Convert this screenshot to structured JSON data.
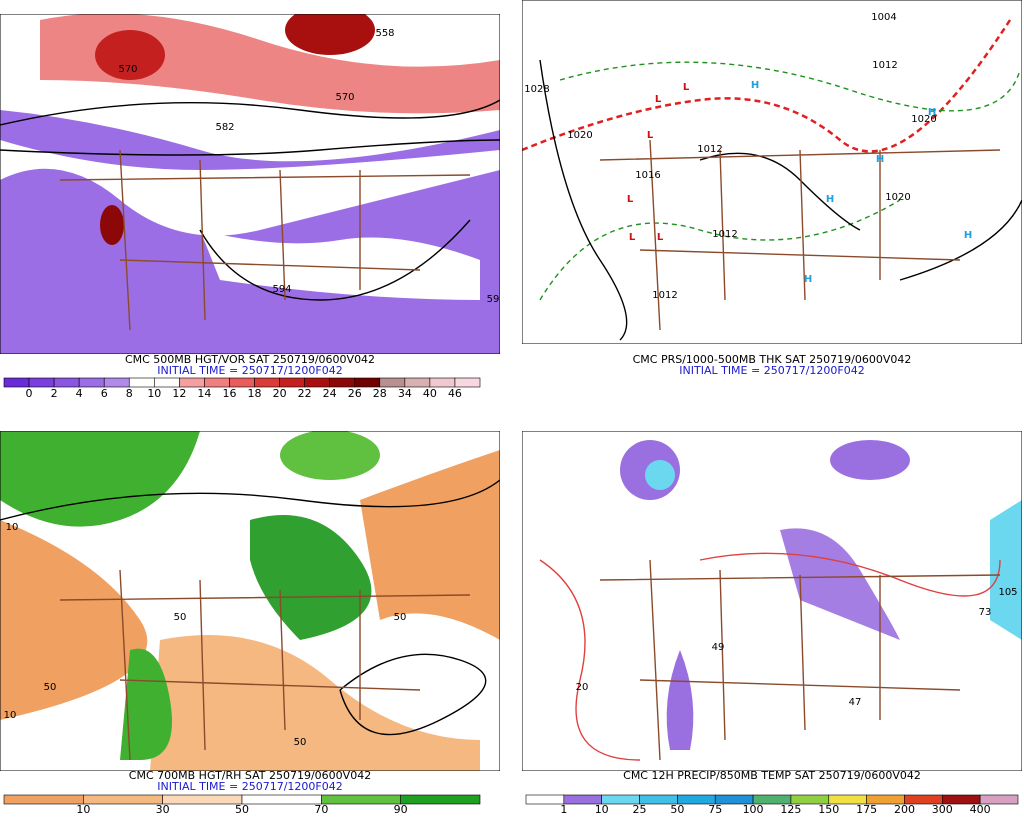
{
  "panels": [
    {
      "title": "CMC 500MB HGT/VOR SAT 250719/0600V042",
      "initial_time": "INITIAL TIME = 250717/1200F042",
      "colorbar": {
        "labels": [
          "0",
          "2",
          "4",
          "6",
          "8",
          "10",
          "12",
          "14",
          "16",
          "18",
          "20",
          "22",
          "24",
          "26",
          "28",
          "34",
          "40",
          "46"
        ],
        "colors": [
          "#6a2bd9",
          "#7a3fdc",
          "#8a55e0",
          "#9c6ee5",
          "#b08ae9",
          "#ffffff",
          "#ffffff",
          "#f5a0a0",
          "#f08080",
          "#e85c5c",
          "#d93a3a",
          "#c42020",
          "#a81010",
          "#8c0808",
          "#700000",
          "#b89090",
          "#d8b0b0",
          "#f0c8d0",
          "#f8d8e0"
        ]
      },
      "map_labels": [
        "570",
        "582",
        "594",
        "558",
        "570",
        "59"
      ]
    },
    {
      "title": "CMC PRS/1000-500MB THK SAT 250719/0600V042",
      "initial_time": "INITIAL TIME = 250717/1200F042",
      "map_labels": [
        "1028",
        "1020",
        "1012",
        "1012",
        "1016",
        "1012",
        "1004",
        "1020",
        "1020",
        "1012",
        "H",
        "H",
        "H",
        "H",
        "H",
        "H",
        "L",
        "L",
        "L",
        "L",
        "L",
        "L"
      ]
    },
    {
      "title": "CMC 700MB HGT/RH SAT 250719/0600V042",
      "initial_time": "INITIAL TIME = 250717/1200F042",
      "colorbar": {
        "labels": [
          "10",
          "30",
          "50",
          "70",
          "90"
        ],
        "colors": [
          "#f0a060",
          "#f5b880",
          "#fad8b8",
          "#ffffff",
          "#60c040",
          "#20a020"
        ]
      },
      "map_labels": [
        "10",
        "50",
        "50",
        "50",
        "10",
        "50"
      ]
    },
    {
      "title": "CMC 12H PRECIP/850MB TEMP SAT 250719/0600V042",
      "colorbar": {
        "labels": [
          "1",
          "10",
          "25",
          "50",
          "75",
          "100",
          "125",
          "150",
          "175",
          "200",
          "300",
          "400"
        ],
        "colors": [
          "#ffffff",
          "#9a70e0",
          "#6cd8f0",
          "#40c0e8",
          "#20a8e0",
          "#2090d8",
          "#50b070",
          "#90d040",
          "#f0e040",
          "#f0a030",
          "#e04020",
          "#a01010",
          "#d8a0c0"
        ]
      },
      "map_labels": [
        "20",
        "49",
        "47",
        "105",
        "73"
      ]
    }
  ]
}
